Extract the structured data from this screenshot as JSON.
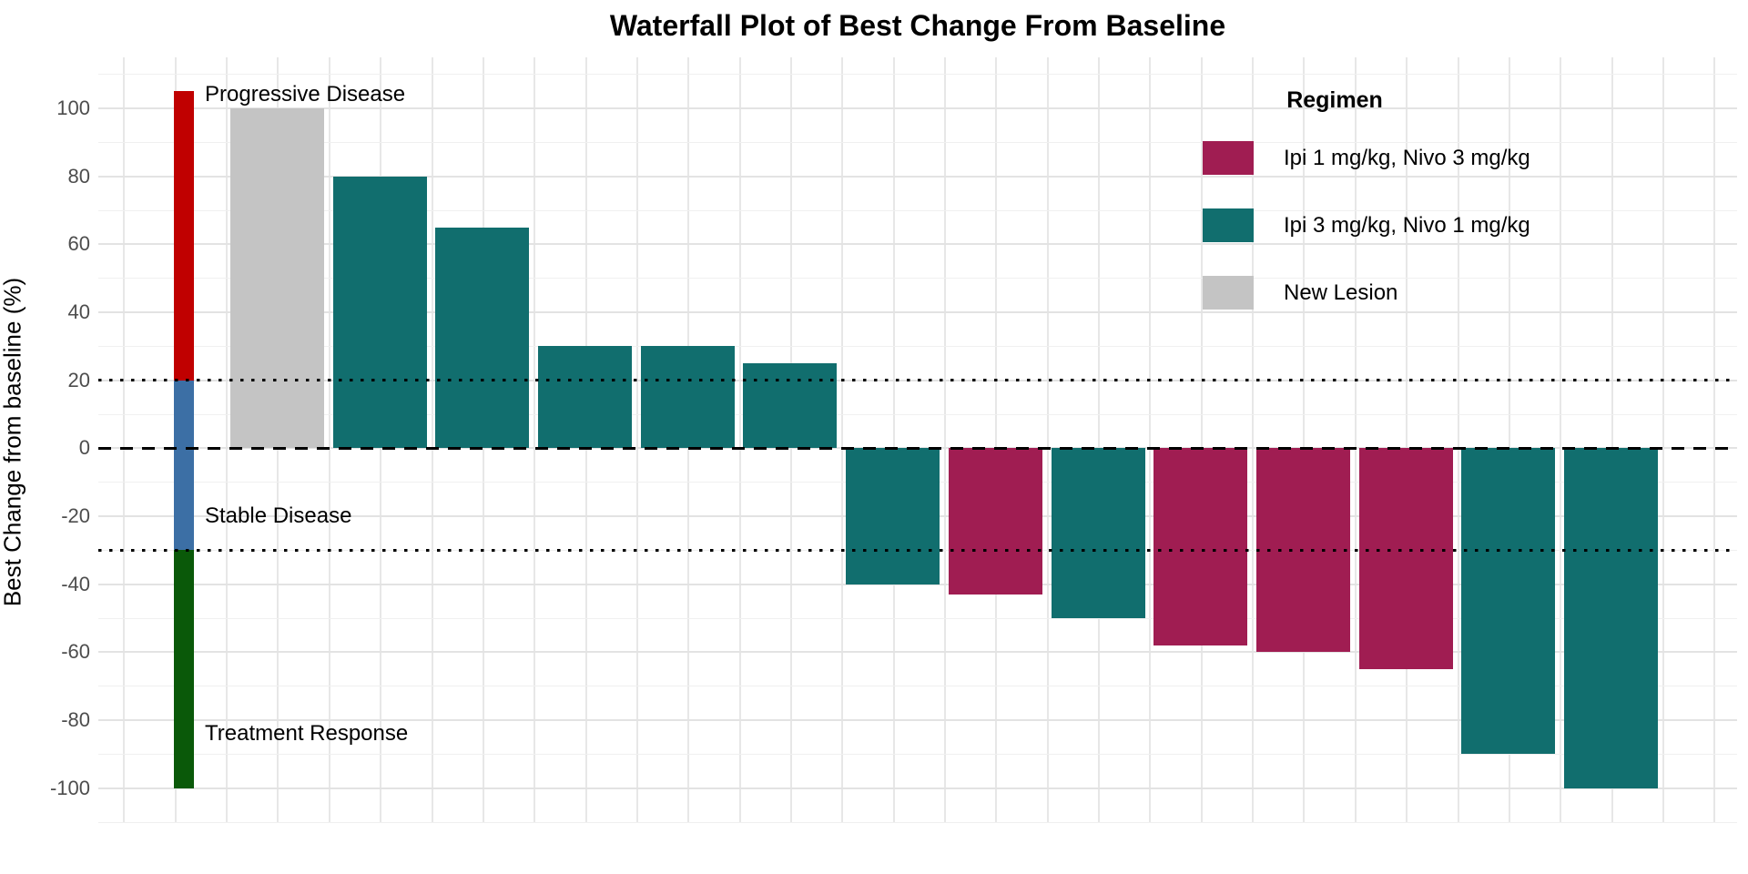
{
  "title": "Waterfall Plot of Best Change From Baseline",
  "ylabel": "Best Change from baseline (%)",
  "colors": {
    "ipi1_nivo3": "#A01D52",
    "ipi3_nivo1": "#116E6E",
    "new_lesion": "#C4C4C4",
    "progressive": "#C00000",
    "stable": "#3C6FA5",
    "response": "#0A5909"
  },
  "legend": {
    "title": "Regimen",
    "items": [
      {
        "label": "Ipi 1 mg/kg, Nivo 3 mg/kg",
        "color_key": "ipi1_nivo3"
      },
      {
        "label": "Ipi 3 mg/kg, Nivo 1 mg/kg",
        "color_key": "ipi3_nivo1"
      },
      {
        "label": "New Lesion",
        "color_key": "new_lesion"
      }
    ]
  },
  "chart_data": {
    "type": "bar",
    "title": "Waterfall Plot of Best Change From Baseline",
    "xlabel": "",
    "ylabel": "Best Change from baseline (%)",
    "ylim": [
      -110,
      115
    ],
    "yticks": [
      100,
      80,
      60,
      40,
      20,
      0,
      -20,
      -40,
      -60,
      -80,
      -100
    ],
    "grid": true,
    "legend_position": "inside-top-right",
    "bars": [
      {
        "value": 100,
        "group": "new_lesion"
      },
      {
        "value": 80,
        "group": "ipi3_nivo1"
      },
      {
        "value": 65,
        "group": "ipi3_nivo1"
      },
      {
        "value": 30,
        "group": "ipi3_nivo1"
      },
      {
        "value": 30,
        "group": "ipi3_nivo1"
      },
      {
        "value": 25,
        "group": "ipi3_nivo1"
      },
      {
        "value": -40,
        "group": "ipi3_nivo1"
      },
      {
        "value": -43,
        "group": "ipi1_nivo3"
      },
      {
        "value": -50,
        "group": "ipi3_nivo1"
      },
      {
        "value": -58,
        "group": "ipi1_nivo3"
      },
      {
        "value": -60,
        "group": "ipi1_nivo3"
      },
      {
        "value": -65,
        "group": "ipi1_nivo3"
      },
      {
        "value": -90,
        "group": "ipi3_nivo1"
      },
      {
        "value": -100,
        "group": "ipi3_nivo1"
      }
    ],
    "reference_lines": [
      {
        "y": 0,
        "style": "dashed"
      },
      {
        "y": 20,
        "style": "dotted"
      },
      {
        "y": -30,
        "style": "dotted"
      }
    ],
    "response_indicator": [
      {
        "label": "Progressive Disease",
        "from": 20,
        "to": 105,
        "color_key": "progressive"
      },
      {
        "label": "Stable Disease",
        "from": -30,
        "to": 20,
        "color_key": "stable"
      },
      {
        "label": "Treatment Response",
        "from": -100,
        "to": -30,
        "color_key": "response"
      }
    ],
    "annotations": [
      {
        "text": "Progressive Disease",
        "y": 104
      },
      {
        "text": "Stable Disease",
        "y": -20
      },
      {
        "text": "Treatment Response",
        "y": -84
      }
    ]
  }
}
